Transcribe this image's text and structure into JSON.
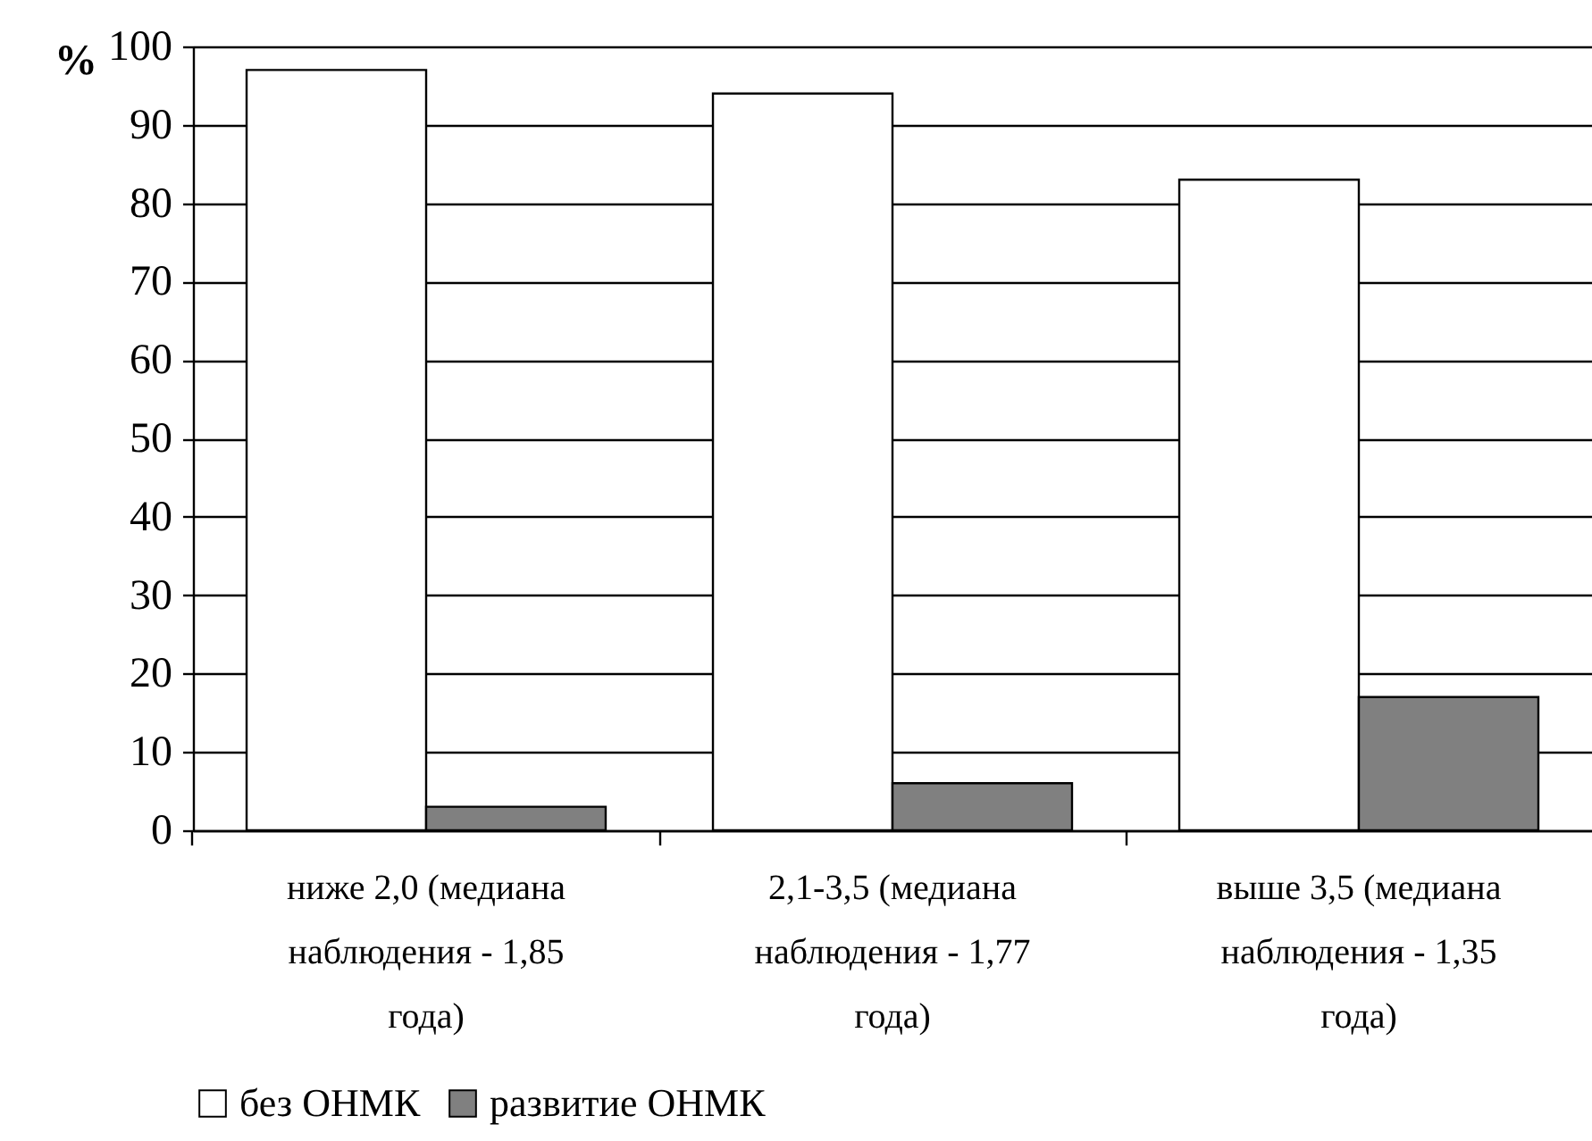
{
  "chart_data": {
    "type": "bar",
    "ylabel": "%",
    "categories": [
      "ниже 2,0 (медиана наблюдения - 1,85 года)",
      "2,1-3,5 (медиана наблюдения - 1,77 года)",
      "выше 3,5 (медиана наблюдения - 1,35 года)"
    ],
    "series": [
      {
        "name": "без ОНМК",
        "color": "#ffffff",
        "values": [
          97,
          94,
          83
        ]
      },
      {
        "name": "развитие ОНМК",
        "color": "#808080",
        "values": [
          3,
          6,
          17
        ]
      }
    ],
    "ylim": [
      0,
      100
    ],
    "yticks": [
      0,
      10,
      20,
      30,
      40,
      50,
      60,
      70,
      80,
      90,
      100
    ],
    "grid": "y",
    "legend": "bottom"
  }
}
